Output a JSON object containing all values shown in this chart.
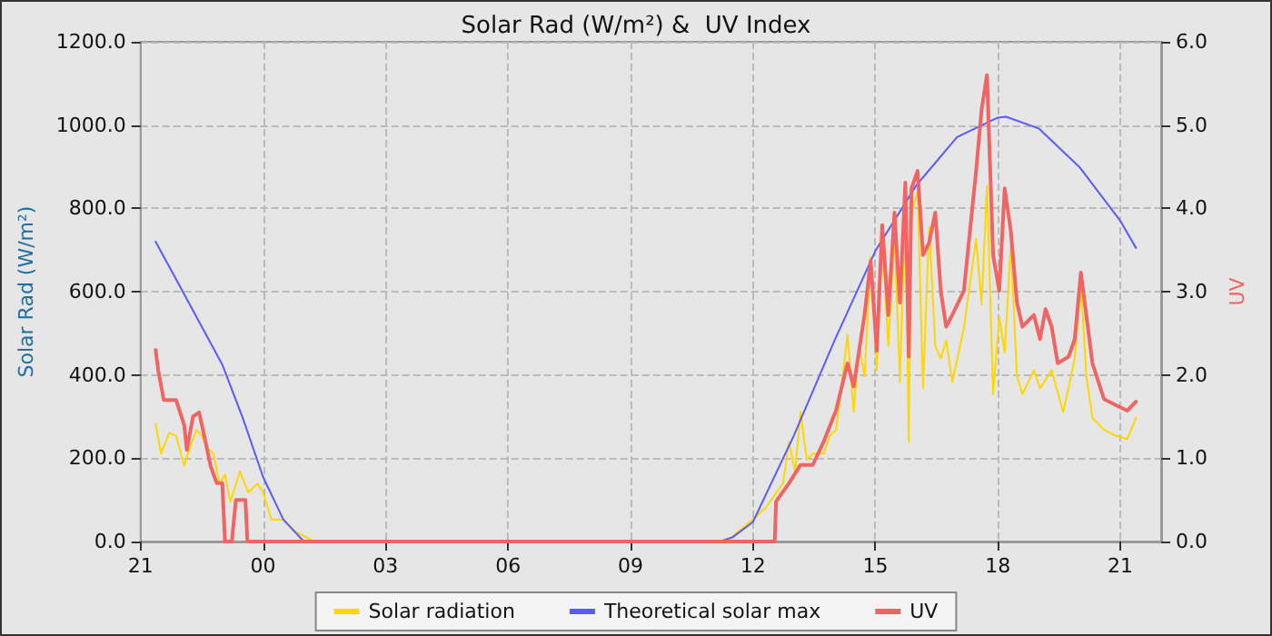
{
  "chart_data": {
    "type": "line",
    "title": "Solar Rad (W/m²) &  UV Index",
    "ylabel": "Solar Rad (W/m²)",
    "y2label": "UV",
    "xlim": [
      "--01-01T21:00",
      "--01-02T22:00"
    ],
    "xticks": [
      {
        "value": "--01-01T21:00",
        "label": "21"
      },
      {
        "value": "--01-02T00:00",
        "label": "00"
      },
      {
        "value": "--01-02T03:00",
        "label": "03"
      },
      {
        "value": "--01-02T06:00",
        "label": "06"
      },
      {
        "value": "--01-02T09:00",
        "label": "09"
      },
      {
        "value": "--01-02T12:00",
        "label": "12"
      },
      {
        "value": "--01-02T15:00",
        "label": "15"
      },
      {
        "value": "--01-02T18:00",
        "label": "18"
      },
      {
        "value": "--01-02T21:00",
        "label": "21"
      }
    ],
    "ylim": [
      0,
      1200
    ],
    "yticks": [
      {
        "value": 0,
        "label": "0.0"
      },
      {
        "value": 200,
        "label": "200.0"
      },
      {
        "value": 400,
        "label": "400.0"
      },
      {
        "value": 600,
        "label": "600.0"
      },
      {
        "value": 800,
        "label": "800.0"
      },
      {
        "value": 1000,
        "label": "1000.0"
      },
      {
        "value": 1200,
        "label": "1200.0"
      }
    ],
    "y2lim": [
      0,
      6
    ],
    "y2ticks": [
      {
        "value": 0,
        "label": "0.0"
      },
      {
        "value": 1,
        "label": "1.0"
      },
      {
        "value": 2,
        "label": "2.0"
      },
      {
        "value": 3,
        "label": "3.0"
      },
      {
        "value": 4,
        "label": "4.0"
      },
      {
        "value": 5,
        "label": "5.0"
      },
      {
        "value": 6,
        "label": "6.0"
      }
    ],
    "grid": true,
    "legend": "bottom",
    "marker": "none",
    "line_style": "solid",
    "series": [
      {
        "name": "Solar radiation",
        "color": "#ffd700",
        "x": [
          "--01-01T21:22",
          "--01-01T21:30",
          "--01-01T21:42",
          "--01-01T21:52",
          "--01-01T22:04",
          "--01-01T22:12",
          "--01-01T22:22",
          "--01-01T22:30",
          "--01-01T22:38",
          "--01-01T22:47",
          "--01-01T22:56",
          "--01-01T23:04",
          "--01-01T23:12",
          "--01-01T23:26",
          "--01-01T23:38",
          "--01-01T23:52",
          "--01-02T00:00",
          "--01-02T00:12",
          "--01-02T00:30",
          "--01-02T00:47",
          "--01-02T01:12",
          "--01-02T11:10",
          "--01-02T11:28",
          "--01-02T12:00",
          "--01-02T12:19",
          "--01-02T12:44",
          "--01-02T12:53",
          "--01-02T13:02",
          "--01-02T13:10",
          "--01-02T13:19",
          "--01-02T13:28",
          "--01-02T13:44",
          "--01-02T13:53",
          "--01-02T14:02",
          "--01-02T14:10",
          "--01-02T14:19",
          "--01-02T14:28",
          "--01-02T14:36",
          "--01-02T14:44",
          "--01-02T14:53",
          "--01-02T15:02",
          "--01-02T15:10",
          "--01-02T15:19",
          "--01-02T15:28",
          "--01-02T15:36",
          "--01-02T15:44",
          "--01-02T15:49",
          "--01-02T15:53",
          "--01-02T16:02",
          "--01-02T16:10",
          "--01-02T16:19",
          "--01-02T16:28",
          "--01-02T16:36",
          "--01-02T16:44",
          "--01-02T16:53",
          "--01-02T17:10",
          "--01-02T17:28",
          "--01-02T17:36",
          "--01-02T17:44",
          "--01-02T17:53",
          "--01-02T18:02",
          "--01-02T18:10",
          "--01-02T18:19",
          "--01-02T18:28",
          "--01-02T18:36",
          "--01-02T18:53",
          "--01-02T19:02",
          "--01-02T19:19",
          "--01-02T19:36",
          "--01-02T19:53",
          "--01-02T20:02",
          "--01-02T20:10",
          "--01-02T20:19",
          "--01-02T20:36",
          "--01-02T20:53",
          "--01-02T21:10",
          "--01-02T21:23"
        ],
        "values": [
          282,
          211,
          261,
          254,
          182,
          225,
          268,
          254,
          225,
          211,
          139,
          161,
          96,
          168,
          118,
          139,
          118,
          53,
          53,
          24,
          3,
          0,
          10,
          53,
          82,
          139,
          239,
          168,
          311,
          196,
          211,
          211,
          254,
          268,
          368,
          497,
          311,
          469,
          397,
          684,
          411,
          727,
          469,
          741,
          383,
          827,
          239,
          784,
          841,
          368,
          755,
          469,
          440,
          483,
          383,
          512,
          727,
          569,
          855,
          354,
          540,
          454,
          712,
          397,
          354,
          411,
          368,
          411,
          311,
          440,
          619,
          397,
          297,
          268,
          254,
          246,
          297
        ]
      },
      {
        "name": "Theoretical solar max",
        "color": "#5a5aff",
        "x": [
          "--01-01T21:22",
          "--01-01T22:00",
          "--01-01T23:00",
          "--01-01T23:30",
          "--01-02T00:00",
          "--01-02T00:30",
          "--01-02T01:00",
          "--01-02T11:12",
          "--01-02T11:30",
          "--01-02T12:00",
          "--01-02T13:00",
          "--01-02T14:00",
          "--01-02T15:00",
          "--01-02T16:00",
          "--01-02T17:00",
          "--01-02T18:00",
          "--01-02T18:12",
          "--01-02T19:00",
          "--01-02T20:00",
          "--01-02T21:00",
          "--01-02T21:23"
        ],
        "values": [
          720,
          606,
          425,
          297,
          155,
          52,
          0,
          0,
          10,
          47,
          254,
          483,
          698,
          855,
          971,
          1018,
          1020,
          992,
          899,
          770,
          705
        ]
      },
      {
        "name": "UV",
        "color": "#f06464",
        "axis": "y2",
        "x": [
          "--01-01T21:22",
          "--01-01T21:26",
          "--01-01T21:34",
          "--01-01T21:52",
          "--01-01T22:04",
          "--01-01T22:08",
          "--01-01T22:17",
          "--01-01T22:26",
          "--01-01T22:34",
          "--01-01T22:43",
          "--01-01T22:52",
          "--01-01T23:00",
          "--01-01T23:04",
          "--01-01T23:14",
          "--01-01T23:20",
          "--01-01T23:34",
          "--01-01T23:37",
          "--01-02T12:32",
          "--01-02T12:34",
          "--01-02T12:53",
          "--01-02T13:10",
          "--01-02T13:28",
          "--01-02T13:44",
          "--01-02T14:02",
          "--01-02T14:19",
          "--01-02T14:28",
          "--01-02T14:44",
          "--01-02T14:53",
          "--01-02T15:02",
          "--01-02T15:10",
          "--01-02T15:19",
          "--01-02T15:28",
          "--01-02T15:36",
          "--01-02T15:44",
          "--01-02T15:49",
          "--01-02T15:53",
          "--01-02T16:02",
          "--01-02T16:10",
          "--01-02T16:19",
          "--01-02T16:28",
          "--01-02T16:36",
          "--01-02T16:44",
          "--01-02T16:53",
          "--01-02T17:10",
          "--01-02T17:28",
          "--01-02T17:36",
          "--01-02T17:44",
          "--01-02T17:53",
          "--01-02T18:02",
          "--01-02T18:10",
          "--01-02T18:19",
          "--01-02T18:28",
          "--01-02T18:36",
          "--01-02T18:53",
          "--01-02T19:02",
          "--01-02T19:10",
          "--01-02T19:19",
          "--01-02T19:28",
          "--01-02T19:44",
          "--01-02T19:53",
          "--01-02T20:02",
          "--01-02T20:10",
          "--01-02T20:19",
          "--01-02T20:36",
          "--01-02T20:53",
          "--01-02T21:10",
          "--01-02T21:23"
        ],
        "values": [
          2.3,
          2.05,
          1.7,
          1.7,
          1.4,
          1.1,
          1.5,
          1.55,
          1.25,
          0.9,
          0.7,
          0.7,
          0,
          0,
          0.5,
          0.5,
          0,
          0,
          0.48,
          0.7,
          0.92,
          0.92,
          1.2,
          1.57,
          2.14,
          1.86,
          2.72,
          3.37,
          2.29,
          3.8,
          2.72,
          3.95,
          2.87,
          4.31,
          2.22,
          4.24,
          4.45,
          3.44,
          3.59,
          3.95,
          3.01,
          2.58,
          2.72,
          3.01,
          4.45,
          5.18,
          5.6,
          3.44,
          3.01,
          4.24,
          3.73,
          2.87,
          2.58,
          2.72,
          2.43,
          2.79,
          2.58,
          2.14,
          2.22,
          2.43,
          3.23,
          2.72,
          2.14,
          1.71,
          1.64,
          1.57,
          1.68
        ]
      }
    ]
  }
}
